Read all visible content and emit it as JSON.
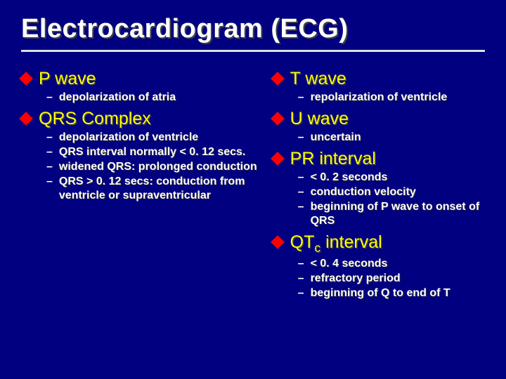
{
  "title": "Electrocardiogram (ECG)",
  "colors": {
    "background": "#000080",
    "title_text": "#ffffff",
    "title_underline": "#e0e0e0",
    "main_bullet_text": "#ffff00",
    "sub_bullet_text": "#ffffff",
    "diamond_bullet": "#ff0000",
    "text_shadow": "#404040"
  },
  "typography": {
    "title_fontsize": 38,
    "main_fontsize": 25,
    "sub_fontsize": 16,
    "font_family": "Arial"
  },
  "left": {
    "items": [
      {
        "label": "P wave",
        "subs": [
          "depolarization of atria"
        ]
      },
      {
        "label": "QRS Complex",
        "subs": [
          "depolarization of ventricle",
          "QRS interval normally < 0. 12 secs.",
          "widened QRS: prolonged conduction",
          "QRS > 0. 12 secs: conduction from ventricle or supraventricular"
        ]
      }
    ]
  },
  "right": {
    "items": [
      {
        "label": "T wave",
        "subs": [
          "repolarization of ventricle"
        ]
      },
      {
        "label": "U wave",
        "subs": [
          "uncertain"
        ]
      },
      {
        "label": "PR interval",
        "subs": [
          "< 0. 2 seconds",
          "conduction velocity",
          "beginning of P wave to onset of QRS"
        ]
      },
      {
        "label_html": "QT<sub>c</sub> interval",
        "label": "QTc interval",
        "subs": [
          "< 0. 4 seconds",
          "refractory period",
          "beginning of Q to end of T"
        ]
      }
    ]
  }
}
